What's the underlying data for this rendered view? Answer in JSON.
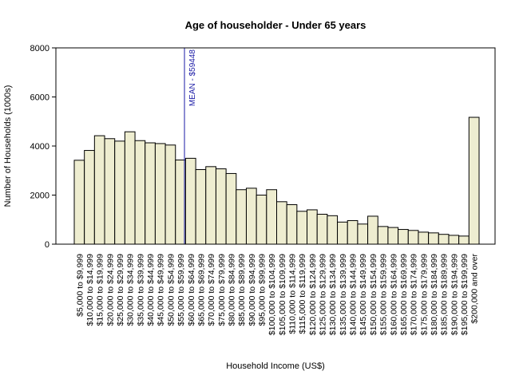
{
  "chart_data": {
    "type": "bar",
    "title": "Age of householder - Under 65 years",
    "xlabel": "Household Income (US$)",
    "ylabel": "Number of Households (1000s)",
    "ylim": [
      0,
      8000
    ],
    "yticks": [
      0,
      2000,
      4000,
      6000,
      8000
    ],
    "grid": false,
    "legend": "none",
    "bar_color": "#eeedd0",
    "categories": [
      "$5,000 to $9,999",
      "$10,000 to $14,999",
      "$15,000 to $19,999",
      "$20,000 to $24,999",
      "$25,000 to $29,999",
      "$30,000 to $34,999",
      "$35,000 to $39,999",
      "$40,000 to $44,999",
      "$45,000 to $49,999",
      "$50,000 to $54,999",
      "$55,000 to $59,999",
      "$60,000 to $64,999",
      "$65,000 to $69,999",
      "$70,000 to $74,999",
      "$75,000 to $79,999",
      "$80,000 to $84,999",
      "$85,000 to $89,999",
      "$90,000 to $94,999",
      "$95,000 to $99,999",
      "$100,000 to $104,999",
      "$105,000 to $109,999",
      "$110,000 to $114,999",
      "$115,000 to $119,999",
      "$120,000 to $124,999",
      "$125,000 to $129,999",
      "$130,000 to $134,999",
      "$135,000 to $139,999",
      "$140,000 to $144,999",
      "$145,000 to $149,999",
      "$150,000 to $154,999",
      "$155,000 to $159,999",
      "$160,000 to $164,999",
      "$165,000 to $169,999",
      "$170,000 to $174,999",
      "$175,000 to $179,999",
      "$180,000 to $184,999",
      "$185,000 to $189,999",
      "$190,000 to $194,999",
      "$195,000 to $199,999",
      "$200,000 and over"
    ],
    "values": [
      3420,
      3820,
      4420,
      4300,
      4200,
      4580,
      4220,
      4130,
      4100,
      4040,
      3430,
      3500,
      3040,
      3160,
      3070,
      2880,
      2220,
      2280,
      2000,
      2220,
      1730,
      1610,
      1340,
      1400,
      1220,
      1160,
      900,
      960,
      820,
      1140,
      720,
      680,
      600,
      560,
      490,
      460,
      400,
      360,
      330,
      5170
    ],
    "annotations": [
      {
        "text": "MEAN - $59448",
        "x_value": 59448,
        "color": "#1a1aa6"
      }
    ]
  }
}
